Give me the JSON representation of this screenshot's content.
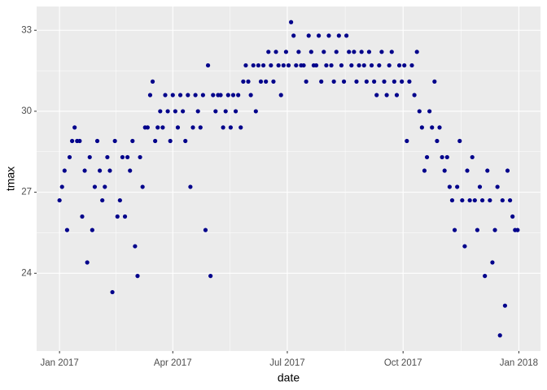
{
  "chart_data": {
    "type": "scatter",
    "x_label": "date",
    "y_label": "tmax",
    "color": "#00008B",
    "grid": true,
    "xlim": [
      -18.2,
      382.2
    ],
    "xticks": [
      {
        "value": 0,
        "label": "Jan 2017"
      },
      {
        "value": 90,
        "label": "Apr 2017"
      },
      {
        "value": 181,
        "label": "Jul 2017"
      },
      {
        "value": 273,
        "label": "Oct 2017"
      },
      {
        "value": 365,
        "label": "Jan 2018"
      }
    ],
    "ylim": [
      21.12,
      33.88
    ],
    "yticks": [
      24,
      27,
      30,
      33
    ],
    "x": [
      0,
      2,
      4,
      6,
      8,
      10,
      12,
      14,
      16,
      18,
      20,
      22,
      24,
      26,
      28,
      30,
      32,
      34,
      36,
      38,
      40,
      42,
      44,
      46,
      48,
      50,
      52,
      54,
      56,
      58,
      60,
      62,
      64,
      66,
      68,
      70,
      72,
      74,
      76,
      78,
      80,
      82,
      84,
      86,
      88,
      90,
      92,
      94,
      96,
      98,
      100,
      102,
      104,
      106,
      108,
      110,
      112,
      114,
      116,
      118,
      120,
      122,
      124,
      126,
      128,
      130,
      132,
      134,
      136,
      138,
      140,
      142,
      144,
      146,
      148,
      150,
      152,
      154,
      156,
      158,
      160,
      162,
      164,
      166,
      168,
      170,
      172,
      174,
      176,
      178,
      180,
      182,
      184,
      186,
      188,
      190,
      192,
      194,
      196,
      198,
      200,
      202,
      204,
      206,
      208,
      210,
      212,
      214,
      216,
      218,
      220,
      222,
      224,
      226,
      228,
      230,
      232,
      234,
      236,
      238,
      240,
      242,
      244,
      246,
      248,
      250,
      252,
      254,
      256,
      258,
      260,
      262,
      264,
      266,
      268,
      270,
      272,
      274,
      276,
      278,
      280,
      282,
      284,
      286,
      288,
      290,
      292,
      294,
      296,
      298,
      300,
      302,
      304,
      306,
      308,
      310,
      312,
      314,
      316,
      318,
      320,
      322,
      324,
      326,
      328,
      330,
      332,
      334,
      336,
      338,
      340,
      342,
      344,
      346,
      348,
      350,
      352,
      354,
      356,
      358,
      360,
      362,
      364
    ],
    "values": [
      26.7,
      27.2,
      27.8,
      25.6,
      28.3,
      28.9,
      29.4,
      28.9,
      28.9,
      26.1,
      27.8,
      24.4,
      28.3,
      25.6,
      27.2,
      28.9,
      27.8,
      26.7,
      27.2,
      28.3,
      27.8,
      23.3,
      28.9,
      26.1,
      26.7,
      28.3,
      26.1,
      28.3,
      27.8,
      28.9,
      25.0,
      23.9,
      28.3,
      27.2,
      29.4,
      29.4,
      30.6,
      31.1,
      28.9,
      29.4,
      30.0,
      29.4,
      30.6,
      30.0,
      28.9,
      30.6,
      30.0,
      29.4,
      30.6,
      30.0,
      28.9,
      30.6,
      27.2,
      29.4,
      30.6,
      30.0,
      29.4,
      30.6,
      25.6,
      31.7,
      23.9,
      30.6,
      30.0,
      30.6,
      30.6,
      29.4,
      30.0,
      30.6,
      29.4,
      30.6,
      30.0,
      30.6,
      29.4,
      31.1,
      31.7,
      31.1,
      30.6,
      31.7,
      30.0,
      31.7,
      31.1,
      31.7,
      31.1,
      32.2,
      31.7,
      31.1,
      32.2,
      31.7,
      30.6,
      31.7,
      32.2,
      31.7,
      33.3,
      32.8,
      31.7,
      32.2,
      31.7,
      31.7,
      31.1,
      32.8,
      32.2,
      31.7,
      31.7,
      32.8,
      31.1,
      32.2,
      31.7,
      32.8,
      31.7,
      31.1,
      32.2,
      32.8,
      31.7,
      31.1,
      32.8,
      32.2,
      31.7,
      32.2,
      31.1,
      31.7,
      32.2,
      31.7,
      31.1,
      32.2,
      31.7,
      31.1,
      30.6,
      31.7,
      32.2,
      31.1,
      30.6,
      31.7,
      32.2,
      31.1,
      30.6,
      31.7,
      31.1,
      31.7,
      28.9,
      31.1,
      31.7,
      30.6,
      32.2,
      30.0,
      29.4,
      27.8,
      28.3,
      30.0,
      29.4,
      31.1,
      28.9,
      29.4,
      28.3,
      27.8,
      28.3,
      27.2,
      26.7,
      25.6,
      27.2,
      28.9,
      26.7,
      25.0,
      27.8,
      26.7,
      28.3,
      26.7,
      25.6,
      27.2,
      26.7,
      23.9,
      27.8,
      26.7,
      24.4,
      25.6,
      27.2,
      21.7,
      26.7,
      22.8,
      27.8,
      26.7,
      26.1,
      25.6,
      25.6
    ]
  }
}
